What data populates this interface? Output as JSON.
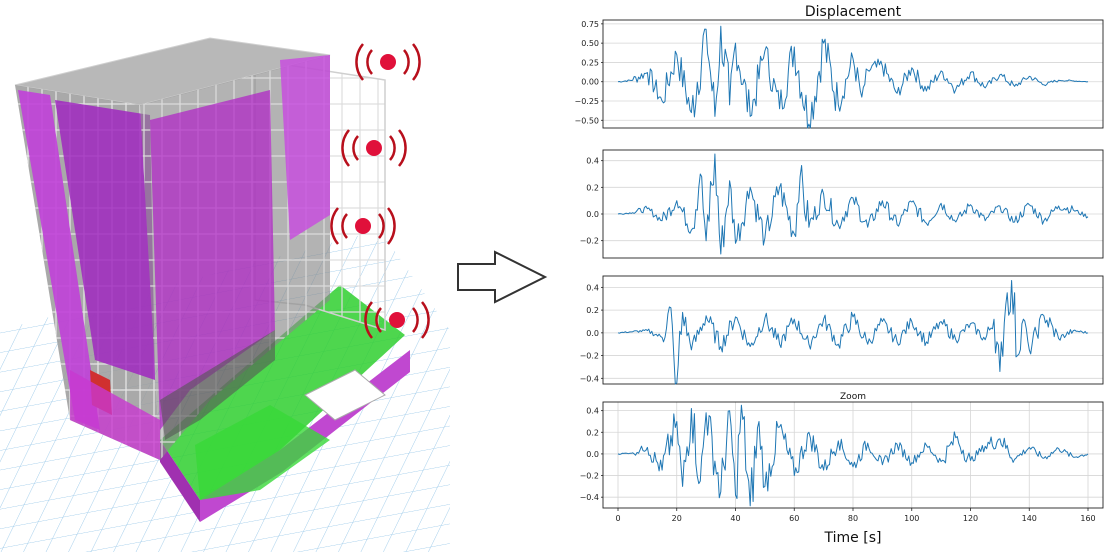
{
  "colors": {
    "series": "#1f77b4",
    "sensor": "#e0103a",
    "wave": "#b80f1c",
    "core": "#b010c8",
    "slab": "#2fcf2f",
    "grid": "#9ecbea"
  },
  "sensors": [
    "sensor-icon",
    "sensor-icon",
    "sensor-icon",
    "sensor-icon"
  ],
  "chart_data": [
    {
      "type": "line",
      "title": "Displacement",
      "xlim": [
        0,
        160
      ],
      "ylim": [
        -0.6,
        0.8
      ],
      "yticks": [
        0.75,
        0.5,
        0.25,
        0.0,
        -0.25,
        -0.5
      ],
      "ytick_labels": [
        "0.75",
        "0.50",
        "0.25",
        "0.00",
        "−0.25",
        "−0.50"
      ],
      "grid": true,
      "series": [
        {
          "x": [
            0,
            5,
            10,
            15,
            20,
            25,
            30,
            33,
            35,
            38,
            40,
            45,
            50,
            55,
            60,
            65,
            70,
            75,
            80,
            83,
            85,
            90,
            95,
            100,
            105,
            110,
            115,
            120,
            125,
            130,
            135,
            140,
            145,
            150,
            155,
            160
          ],
          "y": [
            0.0,
            0.02,
            0.12,
            -0.25,
            0.35,
            -0.4,
            0.68,
            -0.45,
            0.72,
            -0.3,
            0.5,
            -0.45,
            0.4,
            -0.35,
            0.45,
            -0.55,
            0.5,
            -0.3,
            0.3,
            -0.2,
            0.15,
            0.2,
            -0.15,
            0.18,
            -0.12,
            0.14,
            -0.1,
            0.12,
            -0.08,
            0.09,
            -0.06,
            0.07,
            -0.04,
            0.02,
            0.01,
            0.0
          ]
        }
      ]
    },
    {
      "type": "line",
      "title": "",
      "xlim": [
        0,
        160
      ],
      "ylim": [
        -0.33,
        0.48
      ],
      "yticks": [
        0.4,
        0.2,
        0.0,
        -0.2
      ],
      "ytick_labels": [
        "0.4",
        "0.2",
        "0.0",
        "−0.2"
      ],
      "grid": true,
      "series": [
        {
          "x": [
            0,
            5,
            10,
            15,
            20,
            25,
            28,
            30,
            33,
            35,
            38,
            40,
            45,
            50,
            55,
            60,
            62,
            65,
            70,
            75,
            80,
            85,
            90,
            95,
            100,
            105,
            110,
            115,
            120,
            125,
            130,
            135,
            140,
            145,
            150,
            155,
            160
          ],
          "y": [
            0.0,
            0.01,
            0.04,
            -0.05,
            0.1,
            -0.12,
            0.3,
            -0.2,
            0.45,
            -0.3,
            0.25,
            -0.22,
            0.2,
            -0.18,
            0.2,
            -0.15,
            0.28,
            -0.1,
            0.15,
            -0.08,
            0.12,
            -0.1,
            0.1,
            -0.08,
            0.09,
            -0.07,
            0.08,
            -0.06,
            0.07,
            -0.05,
            0.06,
            -0.06,
            0.07,
            -0.05,
            0.06,
            0.03,
            -0.02
          ]
        }
      ]
    },
    {
      "type": "line",
      "title": "",
      "xlim": [
        0,
        160
      ],
      "ylim": [
        -0.45,
        0.5
      ],
      "yticks": [
        0.4,
        0.2,
        0.0,
        -0.2,
        -0.4
      ],
      "ytick_labels": [
        "0.4",
        "0.2",
        "0.0",
        "−0.2",
        "−0.4"
      ],
      "grid": true,
      "series": [
        {
          "x": [
            0,
            5,
            10,
            15,
            18,
            19,
            20,
            22,
            25,
            30,
            35,
            40,
            45,
            50,
            55,
            60,
            65,
            70,
            75,
            80,
            85,
            90,
            95,
            100,
            105,
            110,
            115,
            120,
            125,
            128,
            130,
            132,
            134,
            136,
            138,
            140,
            145,
            150,
            155,
            160
          ],
          "y": [
            0.0,
            0.01,
            0.02,
            -0.04,
            0.22,
            -0.2,
            -0.44,
            0.18,
            -0.15,
            0.15,
            -0.12,
            0.14,
            -0.12,
            0.13,
            -0.1,
            0.12,
            -0.1,
            0.12,
            -0.1,
            0.14,
            -0.1,
            0.1,
            -0.08,
            0.1,
            -0.08,
            0.1,
            -0.06,
            0.08,
            -0.06,
            0.12,
            -0.34,
            0.25,
            0.46,
            -0.2,
            0.12,
            -0.15,
            0.15,
            -0.05,
            0.02,
            0.0
          ]
        }
      ]
    },
    {
      "type": "line",
      "title": "Zoom",
      "xlabel": "Time [s]",
      "xlim": [
        0,
        160
      ],
      "ylim": [
        -0.5,
        0.48
      ],
      "yticks": [
        0.4,
        0.2,
        0.0,
        -0.2,
        -0.4
      ],
      "ytick_labels": [
        "0.4",
        "0.2",
        "0.0",
        "−0.2",
        "−0.4"
      ],
      "xticks": [
        0,
        20,
        40,
        60,
        80,
        100,
        120,
        140,
        160
      ],
      "grid": true,
      "series": [
        {
          "x": [
            0,
            5,
            10,
            15,
            20,
            22,
            25,
            28,
            30,
            35,
            38,
            40,
            42,
            45,
            48,
            50,
            55,
            60,
            65,
            70,
            75,
            80,
            85,
            90,
            95,
            100,
            105,
            110,
            115,
            120,
            125,
            130,
            135,
            140,
            145,
            150,
            155,
            160
          ],
          "y": [
            0.0,
            0.01,
            0.06,
            -0.15,
            0.3,
            -0.3,
            0.42,
            -0.25,
            0.38,
            -0.35,
            0.4,
            -0.38,
            0.45,
            -0.48,
            0.3,
            -0.3,
            0.25,
            -0.2,
            0.2,
            -0.15,
            0.12,
            -0.12,
            0.1,
            -0.1,
            0.09,
            -0.08,
            0.08,
            -0.07,
            0.15,
            -0.06,
            0.07,
            0.14,
            -0.05,
            0.06,
            -0.04,
            0.05,
            -0.03,
            0.0
          ]
        }
      ]
    }
  ]
}
